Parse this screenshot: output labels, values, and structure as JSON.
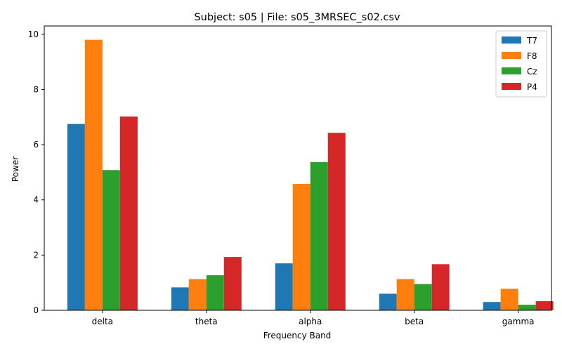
{
  "chart_data": {
    "type": "bar",
    "title": "Subject: s05 | File: s05_3MRSEC_s02.csv",
    "xlabel": "Frequency Band",
    "ylabel": "Power",
    "categories": [
      "delta",
      "theta",
      "alpha",
      "beta",
      "gamma"
    ],
    "series": [
      {
        "name": "T7",
        "color": "#1f77b4",
        "values": [
          6.75,
          0.83,
          1.7,
          0.6,
          0.3
        ]
      },
      {
        "name": "F8",
        "color": "#ff7f0e",
        "values": [
          9.8,
          1.13,
          4.58,
          1.13,
          0.78
        ]
      },
      {
        "name": "Cz",
        "color": "#2ca02c",
        "values": [
          5.08,
          1.27,
          5.37,
          0.95,
          0.2
        ]
      },
      {
        "name": "P4",
        "color": "#d62728",
        "values": [
          7.02,
          1.93,
          6.43,
          1.67,
          0.33
        ]
      }
    ],
    "ylim": [
      0,
      10.3
    ],
    "yticks": [
      0,
      2,
      4,
      6,
      8,
      10
    ],
    "grid": false,
    "legend_position": "top-right"
  }
}
